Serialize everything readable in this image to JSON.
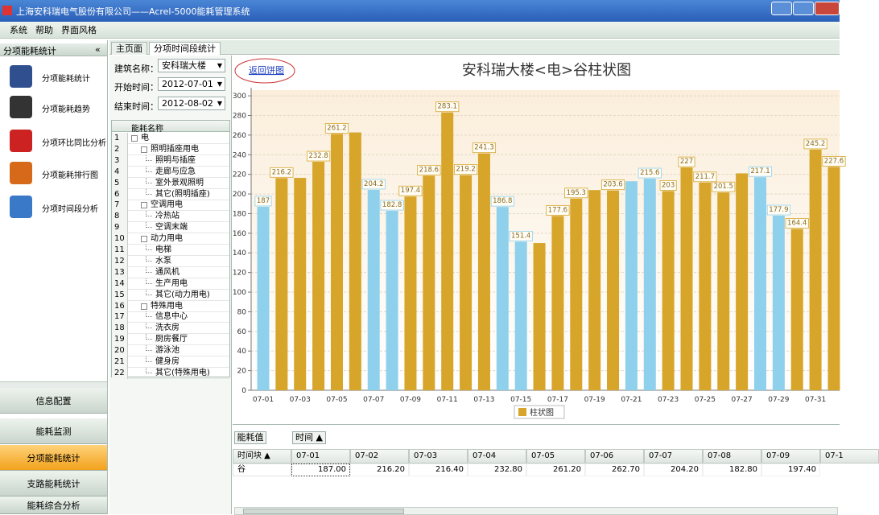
{
  "window": {
    "title": "上海安科瑞电气股份有限公司——Acrel-5000能耗管理系统"
  },
  "menu": [
    "系统",
    "帮助",
    "界面风格"
  ],
  "sidebar": {
    "title": "分项能耗统计",
    "collapse": "«",
    "items": [
      "分项能耗统计",
      "分项能耗趋势",
      "分项环比同比分析",
      "分项能耗排行图",
      "分项时间段分析"
    ]
  },
  "nav": [
    "信息配置",
    "能耗监测",
    "分项能耗统计",
    "支路能耗统计",
    "能耗综合分析"
  ],
  "tabs": [
    "主页面",
    "分项时间段统计"
  ],
  "form": {
    "building_label": "建筑名称：",
    "building": "安科瑞大楼",
    "start_label": "开始时间：",
    "start": "2012-07-01",
    "end_label": "结束时间：",
    "end": "2012-08-02"
  },
  "tree": {
    "header": "能耗名称",
    "nodes": [
      {
        "no": "1",
        "label": "电",
        "children": [
          {
            "no": "2",
            "label": "照明插座用电",
            "children": [
              {
                "no": "3",
                "label": "照明与插座"
              },
              {
                "no": "4",
                "label": "走廊与应急"
              },
              {
                "no": "5",
                "label": "室外景观照明"
              },
              {
                "no": "6",
                "label": "其它(照明插座)"
              }
            ]
          },
          {
            "no": "7",
            "label": "空调用电",
            "children": [
              {
                "no": "8",
                "label": "冷热站"
              },
              {
                "no": "9",
                "label": "空调末端"
              }
            ]
          },
          {
            "no": "10",
            "label": "动力用电",
            "children": [
              {
                "no": "11",
                "label": "电梯"
              },
              {
                "no": "12",
                "label": "水泵"
              },
              {
                "no": "13",
                "label": "通风机"
              },
              {
                "no": "14",
                "label": "生产用电"
              },
              {
                "no": "15",
                "label": "其它(动力用电)"
              }
            ]
          },
          {
            "no": "16",
            "label": "特殊用电",
            "children": [
              {
                "no": "17",
                "label": "信息中心"
              },
              {
                "no": "18",
                "label": "洗衣房"
              },
              {
                "no": "19",
                "label": "厨房餐厅"
              },
              {
                "no": "20",
                "label": "游泳池"
              },
              {
                "no": "21",
                "label": "健身房"
              },
              {
                "no": "22",
                "label": "其它(特殊用电)"
              }
            ]
          }
        ]
      }
    ]
  },
  "chart_data": {
    "type": "bar",
    "title": "安科瑞大楼<电>谷柱状图",
    "link": "返回饼图",
    "categories": [
      "07-01",
      null,
      "07-03",
      null,
      "07-05",
      null,
      "07-07",
      null,
      "07-09",
      null,
      "07-11",
      null,
      "07-13",
      null,
      "07-15",
      null,
      "07-17",
      null,
      "07-19",
      null,
      "07-21",
      null,
      "07-23",
      null,
      "07-25",
      null,
      "07-27",
      null,
      "07-29",
      null,
      "07-31",
      null
    ],
    "values": [
      187,
      216.2,
      216.4,
      232.8,
      261.2,
      262.7,
      204.2,
      182.8,
      197.4,
      218.6,
      283.1,
      219.2,
      241.3,
      186.8,
      151.4,
      150,
      177.6,
      195.3,
      204,
      203.6,
      213,
      215.6,
      203,
      227,
      211.7,
      201.5,
      221,
      217.1,
      177.9,
      164.4,
      245.2,
      227.6
    ],
    "value_labels": [
      "187",
      "216.2",
      null,
      "232.8",
      "261.2",
      null,
      "204.2",
      "182.8",
      "197.4",
      "218.6",
      "283.1",
      "219.2",
      "241.3",
      "186.8",
      "151.4",
      null,
      "177.6",
      "195.3",
      null,
      "203.6",
      null,
      "215.6",
      "203",
      "227",
      "211.7",
      "201.5",
      null,
      "217.1",
      "177.9",
      "164.4",
      "245.2",
      "227.6"
    ],
    "colors": [
      "#8fd0ec",
      "#d6a52a",
      "#d6a52a",
      "#d6a52a",
      "#d6a52a",
      "#d6a52a",
      "#8fd0ec",
      "#8fd0ec",
      "#d6a52a",
      "#d6a52a",
      "#d6a52a",
      "#d6a52a",
      "#d6a52a",
      "#8fd0ec",
      "#8fd0ec",
      "#d6a52a",
      "#d6a52a",
      "#d6a52a",
      "#d6a52a",
      "#d6a52a",
      "#8fd0ec",
      "#8fd0ec",
      "#d6a52a",
      "#d6a52a",
      "#d6a52a",
      "#d6a52a",
      "#d6a52a",
      "#8fd0ec",
      "#8fd0ec",
      "#d6a52a",
      "#d6a52a",
      "#d6a52a"
    ],
    "legend": {
      "label": "柱状图",
      "color": "#d6a52a"
    },
    "ylim": [
      0,
      305
    ],
    "yticks": [
      0,
      20,
      40,
      60,
      80,
      100,
      120,
      140,
      160,
      180,
      200,
      220,
      240,
      260,
      280,
      300
    ],
    "grid": true
  },
  "table": {
    "tab": "能耗值",
    "sort": "时间 ▲",
    "corner": "时间块 ▲",
    "columns": [
      "07-01",
      "07-02",
      "07-03",
      "07-04",
      "07-05",
      "07-06",
      "07-07",
      "07-08",
      "07-09",
      "07-1"
    ],
    "rows": [
      {
        "label": "谷",
        "cells": [
          "187.00",
          "216.20",
          "216.40",
          "232.80",
          "261.20",
          "262.70",
          "204.20",
          "182.80",
          "197.40"
        ]
      }
    ]
  }
}
